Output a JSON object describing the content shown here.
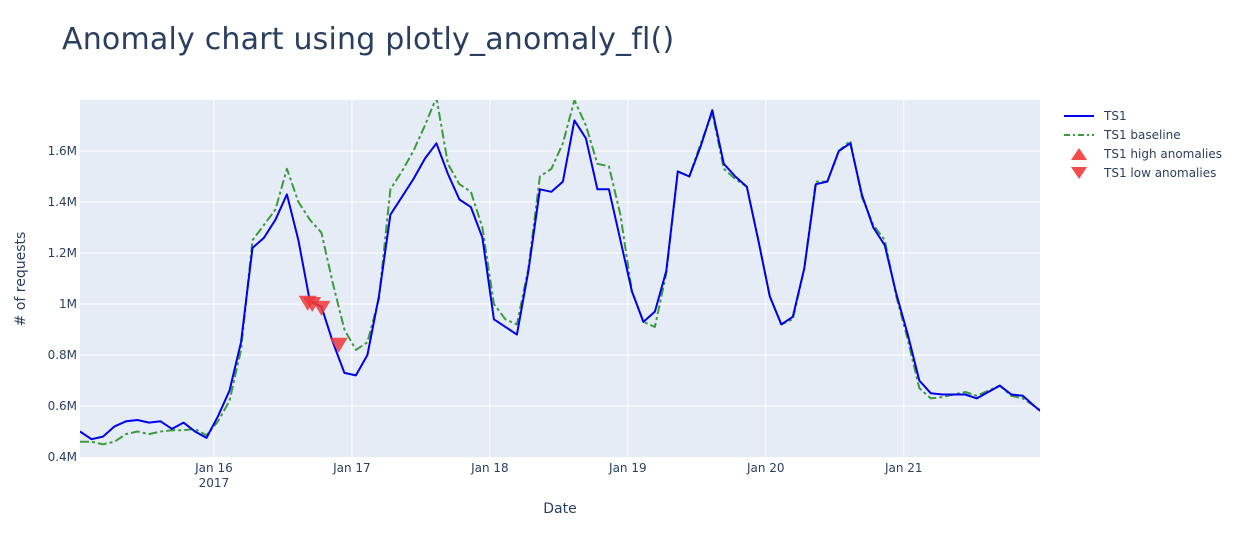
{
  "title": "Anomaly chart using plotly_anomaly_fl()",
  "colors": {
    "plot_bg": "#e5ecf6",
    "grid": "#ffffff",
    "ts1": "#0000ee",
    "baseline": "#3d9a3d",
    "anomaly": "#ef3a3a",
    "text": "#2a3f5f"
  },
  "legend": {
    "items": [
      {
        "label": "TS1",
        "icon": "solid-line-icon"
      },
      {
        "label": "TS1 baseline",
        "icon": "dashdot-line-icon"
      },
      {
        "label": "TS1 high anomalies",
        "icon": "triangle-up-icon"
      },
      {
        "label": "TS1 low anomalies",
        "icon": "triangle-down-icon"
      }
    ]
  },
  "axes": {
    "xlabel": "Date",
    "ylabel": "# of requests",
    "x_ticks": [
      {
        "label": "Jan 16",
        "sub": "2017",
        "index": 11.65
      },
      {
        "label": "Jan 17",
        "sub": "",
        "index": 23.65
      },
      {
        "label": "Jan 18",
        "sub": "",
        "index": 35.65
      },
      {
        "label": "Jan 19",
        "sub": "",
        "index": 47.65
      },
      {
        "label": "Jan 20",
        "sub": "",
        "index": 59.65
      },
      {
        "label": "Jan 21",
        "sub": "",
        "index": 71.65
      }
    ],
    "y_ticks": [
      {
        "label": "0.4M",
        "value": 0.4
      },
      {
        "label": "0.6M",
        "value": 0.6
      },
      {
        "label": "0.8M",
        "value": 0.8
      },
      {
        "label": "1M",
        "value": 1.0
      },
      {
        "label": "1.2M",
        "value": 1.2
      },
      {
        "label": "1.4M",
        "value": 1.4
      },
      {
        "label": "1.6M",
        "value": 1.6
      }
    ]
  },
  "chart_data": {
    "type": "line",
    "title": "Anomaly chart using plotly_anomaly_fl()",
    "xlabel": "Date",
    "ylabel": "# of requests",
    "ylim": [
      0.4,
      1.8
    ],
    "y_unit": "M",
    "x_range_points": [
      0,
      83.5
    ],
    "x_note": "2-hour samples starting ~Jan 15 2017 02:00; index 11.65 = Jan 16",
    "grid": true,
    "legend_position": "right",
    "series": [
      {
        "name": "TS1",
        "style": "solid",
        "values": [
          0.5,
          0.47,
          0.48,
          0.52,
          0.54,
          0.545,
          0.535,
          0.54,
          0.51,
          0.535,
          0.5,
          0.475,
          0.56,
          0.66,
          0.85,
          1.22,
          1.26,
          1.33,
          1.43,
          1.25,
          1.01,
          0.99,
          0.85,
          0.73,
          0.72,
          0.8,
          1.03,
          1.35,
          1.42,
          1.49,
          1.57,
          1.63,
          1.51,
          1.41,
          1.38,
          1.26,
          0.94,
          0.91,
          0.88,
          1.13,
          1.45,
          1.44,
          1.48,
          1.72,
          1.65,
          1.45,
          1.45,
          1.25,
          1.05,
          0.93,
          0.97,
          1.13,
          1.52,
          1.5,
          1.62,
          1.76,
          1.55,
          1.5,
          1.46,
          1.25,
          1.03,
          0.92,
          0.95,
          1.14,
          1.47,
          1.48,
          1.6,
          1.63,
          1.43,
          1.3,
          1.23,
          1.04,
          0.88,
          0.7,
          0.65,
          0.645,
          0.645,
          0.645,
          0.63,
          0.655,
          0.68,
          0.645,
          0.64,
          0.6,
          0.565
        ]
      },
      {
        "name": "TS1 baseline",
        "style": "dashdot",
        "values": [
          0.46,
          0.46,
          0.45,
          0.46,
          0.49,
          0.5,
          0.49,
          0.5,
          0.505,
          0.505,
          0.51,
          0.485,
          0.54,
          0.62,
          0.82,
          1.25,
          1.31,
          1.37,
          1.53,
          1.4,
          1.33,
          1.28,
          1.08,
          0.9,
          0.82,
          0.85,
          1.02,
          1.45,
          1.52,
          1.6,
          1.7,
          1.81,
          1.55,
          1.47,
          1.44,
          1.3,
          1.0,
          0.94,
          0.92,
          1.14,
          1.5,
          1.53,
          1.63,
          1.8,
          1.7,
          1.55,
          1.54,
          1.35,
          1.05,
          0.93,
          0.91,
          1.12,
          1.52,
          1.5,
          1.63,
          1.75,
          1.53,
          1.49,
          1.46,
          1.25,
          1.03,
          0.92,
          0.94,
          1.14,
          1.48,
          1.48,
          1.6,
          1.64,
          1.42,
          1.31,
          1.25,
          1.03,
          0.86,
          0.67,
          0.63,
          0.635,
          0.645,
          0.655,
          0.64,
          0.66,
          0.68,
          0.64,
          0.63,
          0.6,
          0.56
        ]
      },
      {
        "name": "TS1 high anomalies",
        "marker": "triangle-up",
        "points": []
      },
      {
        "name": "TS1 low anomalies",
        "marker": "triangle-down",
        "points": [
          {
            "index": 19.8,
            "value": 1.005
          },
          {
            "index": 20.2,
            "value": 1.0
          },
          {
            "index": 21.0,
            "value": 0.985
          },
          {
            "index": 22.5,
            "value": 0.84
          }
        ]
      }
    ]
  }
}
